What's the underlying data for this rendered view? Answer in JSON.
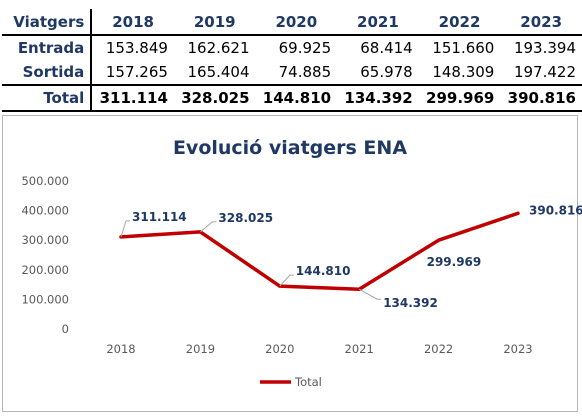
{
  "table": {
    "header_label": "Viatgers",
    "years": [
      "2018",
      "2019",
      "2020",
      "2021",
      "2022",
      "2023"
    ],
    "rows": [
      {
        "label": "Entrada",
        "values": [
          "153.849",
          "162.621",
          "69.925",
          "68.414",
          "151.660",
          "193.394"
        ]
      },
      {
        "label": "Sortida",
        "values": [
          "157.265",
          "165.404",
          "74.885",
          "65.978",
          "148.309",
          "197.422"
        ]
      }
    ],
    "total": {
      "label": "Total",
      "values": [
        "311.114",
        "328.025",
        "144.810",
        "134.392",
        "299.969",
        "390.816"
      ]
    }
  },
  "chart_data": {
    "type": "line",
    "title": "Evolució viatgers ENA",
    "categories": [
      "2018",
      "2019",
      "2020",
      "2021",
      "2022",
      "2023"
    ],
    "series": [
      {
        "name": "Total",
        "values": [
          311114,
          328025,
          144810,
          134392,
          299969,
          390816
        ],
        "color": "#c00000"
      }
    ],
    "data_labels": [
      "311.114",
      "328.025",
      "144.810",
      "134.392",
      "299.969",
      "390.816"
    ],
    "y_ticks": [
      "0",
      "100.000",
      "200.000",
      "300.000",
      "400.000",
      "500.000"
    ],
    "ylim": [
      0,
      500000
    ],
    "grid": false,
    "legend": "bottom",
    "label_color": "#1f3864",
    "title_color": "#1f3864"
  }
}
